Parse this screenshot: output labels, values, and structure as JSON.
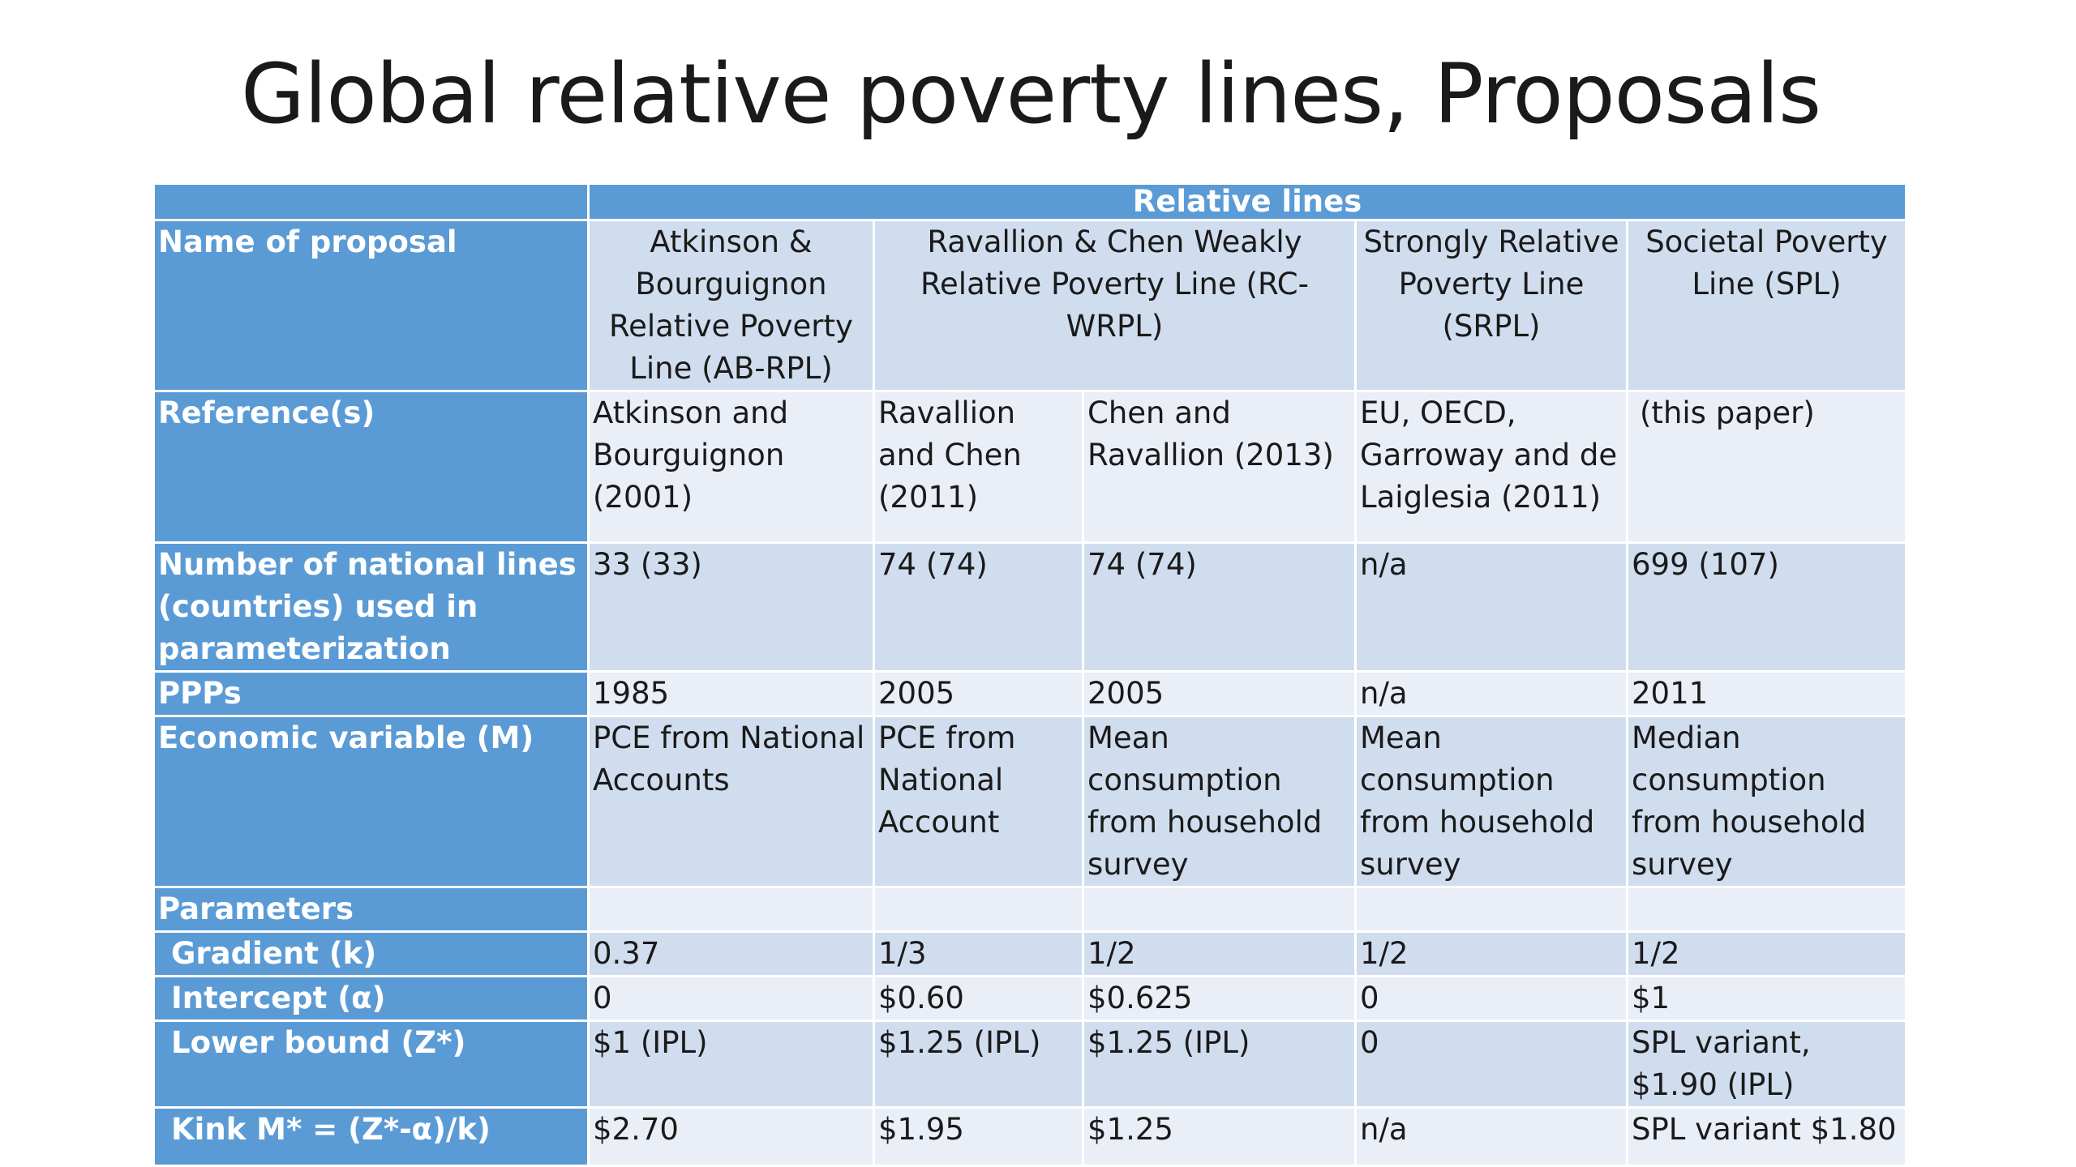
{
  "title": "Global relative poverty lines, Proposals",
  "table": {
    "group_header": "Relative lines",
    "rows": {
      "name": {
        "label": "Name of proposal",
        "ab": "Atkinson & Bourguignon Relative Poverty Line (AB-RPL)",
        "rc": "Ravallion & Chen Weakly Relative Poverty Line (RC-WRPL)",
        "srpl": "Strongly Relative Poverty Line (SRPL)",
        "spl": "Societal Poverty Line (SPL)"
      },
      "reference": {
        "label": "Reference(s)",
        "ab": "Atkinson and Bourguignon (2001)",
        "rc1": "Ravallion and Chen (2011)",
        "rc2": "Chen and Ravallion (2013)",
        "srpl": "EU, OECD, Garroway and de Laiglesia (2011)",
        "spl": "(this paper)"
      },
      "national_lines": {
        "label": "Number of national lines (countries) used in parameterization",
        "ab": "33 (33)",
        "rc1": "74 (74)",
        "rc2": "74 (74)",
        "srpl": "n/a",
        "spl": "699 (107)"
      },
      "ppps": {
        "label": "PPPs",
        "ab": "1985",
        "rc1": "2005",
        "rc2": "2005",
        "srpl": "n/a",
        "spl": "2011"
      },
      "economic_variable": {
        "label": "Economic variable (M)",
        "ab": "PCE from National Accounts",
        "rc1": "PCE from National Account",
        "rc2": "Mean consumption from household survey",
        "srpl": "Mean consumption from household survey",
        "spl": "Median consumption from household survey"
      },
      "parameters": {
        "label": "Parameters"
      },
      "gradient": {
        "label": "Gradient (k)",
        "ab": "0.37",
        "rc1": "1/3",
        "rc2": "1/2",
        "srpl": "1/2",
        "spl": "1/2"
      },
      "intercept": {
        "label": "Intercept (α)",
        "ab": "0",
        "rc1": "$0.60",
        "rc2": "$0.625",
        "srpl": "0",
        "spl": "$1"
      },
      "lower_bound": {
        "label": "Lower bound (Z*)",
        "ab": "$1 (IPL)",
        "rc1": "$1.25 (IPL)",
        "rc2": "$1.25 (IPL)",
        "srpl": "0",
        "spl": "SPL variant, $1.90 (IPL)"
      },
      "kink": {
        "label": "Kink M* = (Z*-α)/k)",
        "ab": "$2.70",
        "rc1": "$1.95",
        "rc2": "$1.25",
        "srpl": "n/a",
        "spl": "SPL variant $1.80"
      }
    }
  },
  "colors": {
    "header_blue": "#5b9bd5",
    "row_dark": "#d0ddee",
    "row_light": "#e9eef7",
    "title_text": "#1a1a1a"
  }
}
